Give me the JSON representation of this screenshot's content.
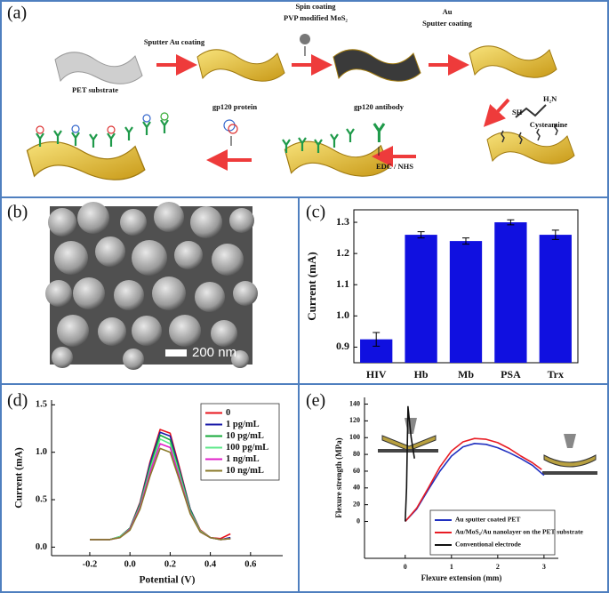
{
  "panel_labels": [
    "(a)",
    "(b)",
    "(c)",
    "(d)",
    "(e)"
  ],
  "schematic": {
    "step1": "Sputter Au coating",
    "step2_line1": "Spin coating",
    "step2_line2": "PVP modified MoS₂",
    "step3_line1": "Au",
    "step3_line2": "Sputter coating",
    "substrate": "PET substrate",
    "thiol": "SH",
    "amine": "H₂N",
    "linker": "Cysteamine",
    "antibody": "gp120 antibody",
    "protein": "gp120 protein",
    "coupling": "EDC / NHS"
  },
  "micrograph": {
    "scale_bar": "200 nm"
  },
  "chart_data": [
    {
      "type": "bar",
      "ylabel": "Current (mA)",
      "categories": [
        "HIV",
        "Hb",
        "Mb",
        "PSA",
        "Trx"
      ],
      "values": [
        0.925,
        1.26,
        1.24,
        1.3,
        1.26
      ],
      "errors": [
        0.022,
        0.01,
        0.01,
        0.008,
        0.015
      ],
      "color": "#1010e0",
      "ylim": [
        0.85,
        1.34
      ],
      "yticks": [
        0.9,
        {
          "value": 1,
          "label": "1.0"
        },
        1.1,
        1.2,
        1.3
      ]
    },
    {
      "type": "line",
      "xlabel": "Potential (V)",
      "ylabel": "Current (mA)",
      "legend": "upper right",
      "x": [
        -0.2,
        -0.15,
        -0.1,
        -0.05,
        0,
        0.05,
        0.1,
        0.15,
        0.2,
        0.25,
        0.3,
        0.35,
        0.4,
        0.45,
        0.5
      ],
      "series": [
        {
          "name": "0",
          "color": "#e8141c",
          "values": [
            0.08,
            0.08,
            0.08,
            0.11,
            0.2,
            0.47,
            0.9,
            1.24,
            1.2,
            0.81,
            0.4,
            0.18,
            0.1,
            0.09,
            0.14
          ]
        },
        {
          "name": "1 pg/mL",
          "color": "#1a1aa8",
          "values": [
            0.08,
            0.08,
            0.08,
            0.11,
            0.2,
            0.46,
            0.88,
            1.21,
            1.17,
            0.79,
            0.4,
            0.17,
            0.1,
            0.08,
            0.1
          ]
        },
        {
          "name": "10 pg/mL",
          "color": "#15a83a",
          "values": [
            0.08,
            0.08,
            0.08,
            0.11,
            0.2,
            0.45,
            0.85,
            1.18,
            1.13,
            0.77,
            0.39,
            0.17,
            0.1,
            0.08,
            0.09
          ]
        },
        {
          "name": "100 pg/mL",
          "color": "#5ee88a",
          "values": [
            0.08,
            0.08,
            0.08,
            0.11,
            0.19,
            0.43,
            0.82,
            1.14,
            1.09,
            0.74,
            0.37,
            0.17,
            0.1,
            0.08,
            0.09
          ]
        },
        {
          "name": "1 ng/mL",
          "color": "#e020c8",
          "values": [
            0.08,
            0.08,
            0.08,
            0.1,
            0.19,
            0.42,
            0.79,
            1.09,
            1.05,
            0.71,
            0.36,
            0.16,
            0.1,
            0.08,
            0.09
          ]
        },
        {
          "name": "10 ng/mL",
          "color": "#8a7a2a",
          "values": [
            0.08,
            0.08,
            0.08,
            0.1,
            0.18,
            0.4,
            0.75,
            1.04,
            1.0,
            0.68,
            0.35,
            0.16,
            0.1,
            0.08,
            0.09
          ]
        }
      ],
      "xlim": [
        -0.39,
        0.76
      ],
      "ylim": [
        -0.09,
        1.55
      ],
      "xticks": [
        -0.2,
        {
          "value": 0,
          "label": "0.0"
        },
        0.2,
        0.4,
        0.6
      ],
      "yticks": [
        {
          "value": 0,
          "label": "0.0"
        },
        0.5,
        {
          "value": 1,
          "label": "1.0"
        },
        1.5
      ]
    },
    {
      "type": "line",
      "xlabel": "Flexure extension (mm)",
      "ylabel": "Flexure strength (MPa)",
      "legend": "lower right",
      "series": [
        {
          "name": "Au sputter coated PET",
          "color": "#2030c0",
          "x": [
            0,
            0.25,
            0.5,
            0.75,
            1,
            1.25,
            1.5,
            1.75,
            2,
            2.25,
            2.5,
            2.75,
            3
          ],
          "values": [
            0,
            15,
            38,
            60,
            78,
            89,
            93,
            92,
            88,
            82,
            75,
            67,
            55
          ]
        },
        {
          "name": "Au/MoS₂/Au nanolayer on the PET substrate",
          "color": "#e81c24",
          "x": [
            0,
            0.25,
            0.5,
            0.75,
            1,
            1.25,
            1.5,
            1.75,
            2,
            2.25,
            2.5,
            2.75,
            2.95
          ],
          "values": [
            0,
            16,
            40,
            65,
            84,
            95,
            99,
            98,
            94,
            87,
            78,
            70,
            62
          ]
        },
        {
          "name": "Conventional electrode",
          "color": "#111111",
          "x": [
            0,
            0.03,
            0.06,
            0.13,
            0.2
          ],
          "values": [
            0,
            40,
            137,
            100,
            75
          ]
        }
      ],
      "xlim": [
        -0.88,
        3.31
      ],
      "ylim": [
        -44,
        148
      ],
      "xticks": [
        0,
        1,
        2,
        3
      ],
      "yticks": [
        0,
        20,
        40,
        60,
        80,
        100,
        120,
        140
      ]
    }
  ]
}
